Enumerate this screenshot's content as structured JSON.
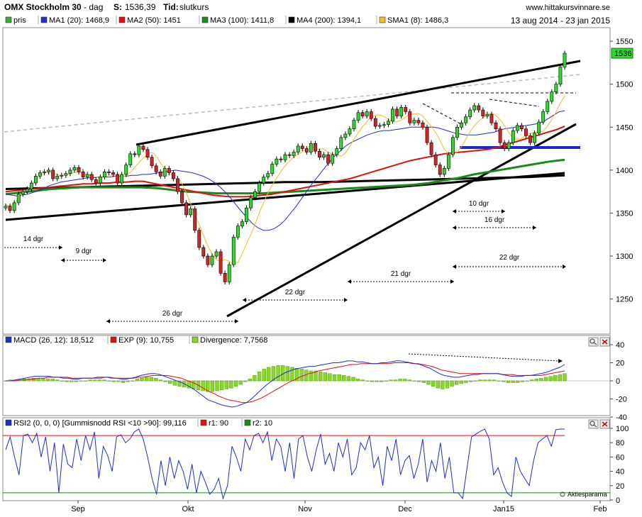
{
  "header": {
    "title": "OMX Stockholm 30",
    "interval": "dag",
    "s_label": "S:",
    "s_value": "1536,39",
    "tid_label": "Tid:",
    "tid_value": "slutkurs",
    "site": "www.hittakursvinnare.se",
    "date_range": "13 aug 2014 - 23 jan 2015"
  },
  "legend_main": [
    {
      "label": "pris",
      "color": "#2fb52f"
    },
    {
      "label": "MA1 (20): 1468,9",
      "color": "#1f2fc8"
    },
    {
      "label": "MA2 (50): 1451",
      "color": "#e01010"
    },
    {
      "label": "MA3 (100): 1411,8",
      "color": "#1a8a1a"
    },
    {
      "label": "MA4 (200): 1394,1",
      "color": "#000000"
    },
    {
      "label": "SMA1 (8): 1486,3",
      "color": "#f0c020"
    }
  ],
  "legend_macd": [
    {
      "label": "MACD (26, 12): 18,512",
      "color": "#1f2fc8"
    },
    {
      "label": "EXP (9): 10,755",
      "color": "#e01010"
    },
    {
      "label": "Divergence: 7,7568",
      "color": "#8ad820"
    }
  ],
  "legend_rsi": [
    {
      "label": "RSI2 (0, 0, 0) [Gummisnodd RSI <10 >90]: 99,116",
      "color": "#1f2fc8"
    },
    {
      "label": "r1: 90",
      "color": "#e01010"
    },
    {
      "label": "r2: 10",
      "color": "#1a8a1a"
    }
  ],
  "price_badge": "1536",
  "watermark": "Aktiespararna",
  "icons": [
    "magnifier-icon",
    "close-icon"
  ],
  "colors": {
    "up": "#2fd82f",
    "down": "#e02020",
    "ma1": "#1f2fc8",
    "ma2": "#e01010",
    "ma3": "#1a8a1a",
    "ma4": "#000000",
    "sma1": "#f0c020"
  },
  "chart_data": [
    {
      "type": "candlestick",
      "ylim": [
        1220,
        1560
      ],
      "y_ticks": [
        "1550",
        "1500",
        "1450",
        "1400",
        "1350",
        "1300",
        "1250"
      ],
      "x_ticks": [
        "Sep",
        "Okt",
        "Nov",
        "Dec",
        "Jan15",
        "Feb"
      ],
      "closes": [
        1358,
        1353,
        1362,
        1372,
        1375,
        1378,
        1385,
        1393,
        1397,
        1398,
        1400,
        1390,
        1393,
        1394,
        1396,
        1400,
        1403,
        1398,
        1392,
        1395,
        1389,
        1385,
        1392,
        1398,
        1397,
        1395,
        1385,
        1395,
        1406,
        1419,
        1418,
        1428,
        1424,
        1415,
        1405,
        1398,
        1393,
        1402,
        1397,
        1390,
        1375,
        1362,
        1348,
        1355,
        1330,
        1310,
        1300,
        1290,
        1300,
        1305,
        1280,
        1270,
        1290,
        1322,
        1335,
        1340,
        1356,
        1368,
        1375,
        1385,
        1392,
        1396,
        1407,
        1413,
        1412,
        1418,
        1417,
        1421,
        1428,
        1425,
        1421,
        1431,
        1422,
        1415,
        1418,
        1408,
        1418,
        1425,
        1438,
        1442,
        1448,
        1458,
        1467,
        1463,
        1468,
        1460,
        1451,
        1452,
        1453,
        1457,
        1471,
        1463,
        1473,
        1468,
        1455,
        1458,
        1455,
        1450,
        1432,
        1418,
        1406,
        1395,
        1402,
        1418,
        1438,
        1450,
        1455,
        1462,
        1470,
        1475,
        1470,
        1463,
        1465,
        1455,
        1448,
        1432,
        1425,
        1432,
        1446,
        1452,
        1448,
        1440,
        1432,
        1443,
        1456,
        1468,
        1480,
        1491,
        1500,
        1520,
        1536
      ],
      "sma8": [
        1360,
        1358,
        1362,
        1368,
        1373,
        1378,
        1384,
        1390,
        1395,
        1397,
        1398,
        1396,
        1394,
        1394,
        1395,
        1397,
        1398,
        1397,
        1395,
        1394,
        1392,
        1391,
        1392,
        1394,
        1394,
        1393,
        1392,
        1394,
        1398,
        1404,
        1410,
        1415,
        1420,
        1420,
        1414,
        1405,
        1398,
        1395,
        1394,
        1388,
        1378,
        1366,
        1352,
        1340,
        1327,
        1314,
        1304,
        1296,
        1294,
        1296,
        1294,
        1290,
        1293,
        1304,
        1316,
        1327,
        1340,
        1354,
        1366,
        1377,
        1386,
        1394,
        1402,
        1408,
        1413,
        1417,
        1420,
        1424,
        1428,
        1426,
        1424,
        1425,
        1421,
        1419,
        1418,
        1416,
        1420,
        1428,
        1437,
        1445,
        1452,
        1458,
        1463,
        1464,
        1464,
        1461,
        1458,
        1456,
        1457,
        1460,
        1464,
        1465,
        1466,
        1464,
        1458,
        1452,
        1445,
        1436,
        1425,
        1419,
        1418,
        1421,
        1428,
        1437,
        1446,
        1453,
        1458,
        1462,
        1465,
        1466,
        1462,
        1456,
        1448,
        1440,
        1436,
        1436,
        1439,
        1442,
        1444,
        1444,
        1445,
        1450,
        1458,
        1467,
        1478,
        1486
      ],
      "ma20": [
        1372,
        1371,
        1370,
        1371,
        1372,
        1374,
        1376,
        1379,
        1382,
        1384,
        1386,
        1387,
        1388,
        1389,
        1390,
        1391,
        1391,
        1392,
        1392,
        1392,
        1393,
        1393,
        1393,
        1394,
        1394,
        1395,
        1395,
        1396,
        1397,
        1398,
        1399,
        1400,
        1399,
        1398,
        1397,
        1395,
        1393,
        1390,
        1386,
        1381,
        1375,
        1368,
        1360,
        1352,
        1345,
        1338,
        1333,
        1330,
        1330,
        1332,
        1336,
        1342,
        1350,
        1358,
        1367,
        1376,
        1385,
        1393,
        1401,
        1409,
        1416,
        1422,
        1428,
        1432,
        1435,
        1438,
        1441,
        1443,
        1445,
        1446,
        1446,
        1447,
        1448,
        1449,
        1450,
        1450,
        1450,
        1450,
        1450,
        1449,
        1447,
        1445,
        1443,
        1442,
        1441,
        1441,
        1441,
        1442,
        1443,
        1444,
        1446,
        1448,
        1449,
        1450,
        1451,
        1452,
        1453,
        1454,
        1456,
        1460,
        1464,
        1468,
        1469
      ],
      "ma50": [
        1375,
        1376,
        1377,
        1378,
        1379,
        1380,
        1381,
        1382,
        1383,
        1384,
        1384,
        1385,
        1385,
        1386,
        1386,
        1387,
        1387,
        1385,
        1383,
        1381,
        1379,
        1377,
        1375,
        1373,
        1371,
        1370,
        1369,
        1369,
        1369,
        1370,
        1371,
        1372,
        1374,
        1376,
        1378,
        1380,
        1382,
        1384,
        1386,
        1388,
        1390,
        1393,
        1396,
        1399,
        1402,
        1405,
        1408,
        1411,
        1413,
        1415,
        1417,
        1419,
        1420,
        1421,
        1422,
        1423,
        1424,
        1426,
        1429,
        1432,
        1435,
        1438,
        1441,
        1444,
        1447,
        1451
      ],
      "ma100": [
        1372,
        1374,
        1376,
        1378,
        1379,
        1380,
        1380,
        1380,
        1380,
        1380,
        1379,
        1377,
        1375,
        1374,
        1373,
        1373,
        1373,
        1373,
        1374,
        1375,
        1376,
        1377,
        1378,
        1379,
        1380,
        1381,
        1382,
        1383,
        1385,
        1388,
        1391,
        1395,
        1398,
        1401,
        1404,
        1407,
        1410,
        1412
      ],
      "ma200": [
        1378,
        1379,
        1380,
        1381,
        1382,
        1383,
        1384,
        1385,
        1386,
        1386,
        1387,
        1388,
        1389,
        1390,
        1391,
        1392,
        1394
      ],
      "annotations": [
        "14 dgr",
        "9 dgr",
        "26 dgr",
        "22 dgr",
        "21 dgr",
        "10 dgr",
        "16 dgr",
        "22 dgr"
      ]
    },
    {
      "type": "macd",
      "ylim": [
        -40,
        40
      ],
      "y_ticks": [
        "40",
        "20",
        "0",
        "-20",
        "-40"
      ],
      "macd": [
        0,
        0,
        1,
        2,
        3,
        4,
        5,
        5,
        5,
        5,
        4,
        4,
        3,
        3,
        2,
        2,
        3,
        3,
        3,
        4,
        4,
        4,
        3,
        3,
        2,
        2,
        3,
        4,
        6,
        7,
        8,
        8,
        7,
        5,
        3,
        1,
        -1,
        -3,
        -6,
        -9,
        -13,
        -17,
        -21,
        -23,
        -25,
        -27,
        -28,
        -29,
        -28,
        -26,
        -24,
        -20,
        -15,
        -10,
        -5,
        -1,
        3,
        6,
        9,
        11,
        13,
        14,
        15,
        16,
        16,
        17,
        18,
        19,
        20,
        20,
        21,
        22,
        22,
        21,
        21,
        20,
        19,
        19,
        20,
        20,
        21,
        22,
        22,
        21,
        20,
        19,
        18,
        16,
        14,
        11,
        8,
        6,
        5,
        4,
        4,
        5,
        6,
        7,
        7,
        8,
        8,
        8,
        8,
        7,
        6,
        5,
        5,
        5,
        6,
        6,
        7,
        8,
        9,
        11,
        13,
        15,
        18
      ],
      "exp": [
        0,
        0,
        0,
        1,
        1,
        2,
        2,
        3,
        3,
        4,
        4,
        4,
        4,
        4,
        3,
        3,
        3,
        3,
        3,
        3,
        3,
        4,
        4,
        3,
        3,
        3,
        3,
        3,
        4,
        4,
        5,
        6,
        6,
        6,
        6,
        5,
        4,
        3,
        1,
        -1,
        -3,
        -6,
        -9,
        -12,
        -14,
        -17,
        -19,
        -21,
        -22,
        -23,
        -24,
        -24,
        -23,
        -21,
        -19,
        -16,
        -13,
        -10,
        -7,
        -4,
        -1,
        1,
        4,
        6,
        8,
        9,
        11,
        12,
        13,
        14,
        15,
        16,
        17,
        18,
        18,
        19,
        19,
        19,
        19,
        19,
        19,
        19,
        20,
        20,
        20,
        20,
        19,
        19,
        18,
        17,
        16,
        14,
        12,
        11,
        10,
        9,
        8,
        8,
        8,
        8,
        8,
        8,
        8,
        8,
        8,
        7,
        7,
        7,
        6,
        6,
        6,
        6,
        6,
        6,
        7,
        8,
        9,
        10,
        11
      ],
      "divergence": [
        0,
        1,
        1,
        1,
        2,
        2,
        3,
        3,
        3,
        2,
        2,
        1,
        0,
        -1,
        -1,
        -1,
        0,
        0,
        1,
        1,
        1,
        1,
        0,
        -1,
        -1,
        -2,
        -1,
        0,
        2,
        3,
        4,
        4,
        3,
        1,
        -1,
        -3,
        -5,
        -6,
        -7,
        -8,
        -9,
        -10,
        -11,
        -12,
        -12,
        -11,
        -10,
        -9,
        -8,
        -6,
        -4,
        -1,
        2,
        6,
        10,
        13,
        15,
        16,
        17,
        17,
        16,
        15,
        14,
        13,
        12,
        11,
        11,
        10,
        9,
        8,
        7,
        7,
        6,
        5,
        4,
        2,
        1,
        0,
        -1,
        -1,
        -1,
        0,
        1,
        1,
        2,
        2,
        1,
        0,
        -1,
        -2,
        -4,
        -6,
        -8,
        -9,
        -8,
        -6,
        -4,
        -3,
        -2,
        -1,
        0,
        1,
        1,
        1,
        1,
        0,
        -1,
        -2,
        -2,
        -2,
        -1,
        0,
        1,
        2,
        3,
        4,
        5,
        6,
        7,
        8
      ]
    },
    {
      "type": "rsi",
      "ylim": [
        0,
        100
      ],
      "y_ticks": [
        "100",
        "80",
        "60",
        "40",
        "20",
        "0"
      ],
      "r1": 90,
      "r2": 10,
      "values": [
        70,
        88,
        60,
        35,
        90,
        92,
        80,
        93,
        60,
        88,
        40,
        80,
        10,
        78,
        50,
        45,
        85,
        55,
        90,
        70,
        95,
        30,
        75,
        62,
        40,
        88,
        91,
        80,
        85,
        95,
        99,
        85,
        60,
        30,
        8,
        55,
        20,
        60,
        30,
        55,
        40,
        15,
        50,
        10,
        40,
        25,
        8,
        15,
        30,
        2,
        20,
        75,
        60,
        40,
        85,
        70,
        90,
        93,
        80,
        95,
        55,
        85,
        75,
        40,
        80,
        30,
        85,
        90,
        60,
        40,
        70,
        92,
        50,
        65,
        40,
        80,
        60,
        85,
        35,
        45,
        80,
        70,
        90,
        45,
        60,
        20,
        75,
        55,
        85,
        35,
        55,
        62,
        30,
        50,
        85,
        25,
        55,
        40,
        80,
        30,
        60,
        10,
        10,
        2,
        45,
        88,
        92,
        96,
        99,
        85,
        35,
        45,
        25,
        10,
        5,
        60,
        40,
        30,
        20,
        55,
        80,
        85,
        90,
        75,
        98,
        99,
        99
      ]
    }
  ]
}
